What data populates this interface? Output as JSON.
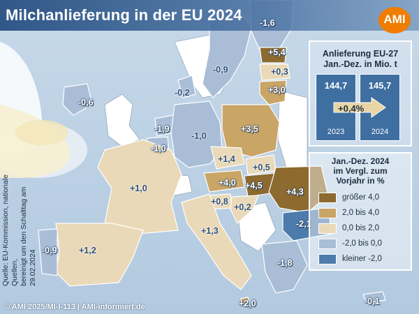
{
  "title": "Milchanlieferung in der EU 2024",
  "logo": "AMI",
  "source": {
    "line1": "Quelle: EU-Kommission, nationale Quellen,",
    "line2": "bereinigt um den Schalttag am 29.02.2024"
  },
  "copyright": "© AMI 2025/MI-I-113 | AMI-informiert.de",
  "info_box": {
    "title_line1": "Anlieferung EU-27",
    "title_line2": "Jan.-Dez. in Mio. t",
    "bars": [
      {
        "year": "2023",
        "value": "144,7",
        "value_num": 144.7
      },
      {
        "year": "2024",
        "value": "145,7",
        "value_num": 145.7
      }
    ],
    "change": "+0,4%"
  },
  "legend": {
    "title_line1": "Jan.-Dez. 2024",
    "title_line2": "im Vergl. zum",
    "title_line3": "Vorjahr in %",
    "items": [
      {
        "label": "größer 4,0",
        "color": "#8c6a30"
      },
      {
        "label": "2,0 bis 4,0",
        "color": "#c9a566"
      },
      {
        "label": "0,0 bis 2,0",
        "color": "#ead9b8"
      },
      {
        "label": "-2,0 bis 0,0",
        "color": "#a9bdd6"
      },
      {
        "label": "kleiner -2,0",
        "color": "#4d7bab"
      }
    ]
  },
  "countries": [
    {
      "id": "finland",
      "value": "-1,6",
      "category": 3
    },
    {
      "id": "sweden",
      "value": "-0,9",
      "category": 3
    },
    {
      "id": "estonia",
      "value": "+5,4",
      "category": 0
    },
    {
      "id": "latvia",
      "value": "+0,3",
      "category": 2
    },
    {
      "id": "lithuania",
      "value": "+3,0",
      "category": 1
    },
    {
      "id": "ireland",
      "value": "-0,6",
      "category": 3
    },
    {
      "id": "denmark",
      "value": "-0,2",
      "category": 3
    },
    {
      "id": "netherlands",
      "value": "-1,9",
      "category": 3
    },
    {
      "id": "belgium",
      "value": "-1,0",
      "category": 3
    },
    {
      "id": "germany",
      "value": "-1,0",
      "category": 3
    },
    {
      "id": "poland",
      "value": "+3,5",
      "category": 1
    },
    {
      "id": "czechia",
      "value": "+1,4",
      "category": 2
    },
    {
      "id": "slovakia",
      "value": "+0,5",
      "category": 2
    },
    {
      "id": "austria",
      "value": "+4,0",
      "category": 1
    },
    {
      "id": "hungary",
      "value": "+4,5",
      "category": 0
    },
    {
      "id": "romania",
      "value": "+4,3",
      "category": 0
    },
    {
      "id": "slovenia",
      "value": "+0,8",
      "category": 2
    },
    {
      "id": "croatia",
      "value": "+0,2",
      "category": 2
    },
    {
      "id": "bulgaria",
      "value": "-2,1",
      "category": 4
    },
    {
      "id": "france",
      "value": "+1,0",
      "category": 2
    },
    {
      "id": "italy",
      "value": "+1,3",
      "category": 2
    },
    {
      "id": "spain",
      "value": "+1,2",
      "category": 2
    },
    {
      "id": "portugal",
      "value": "-0,9",
      "category": 3
    },
    {
      "id": "greece",
      "value": "-1,8",
      "category": 3
    },
    {
      "id": "malta",
      "value": "+2,0",
      "category": 1
    },
    {
      "id": "cyprus",
      "value": "-0,1",
      "category": 3
    }
  ]
}
